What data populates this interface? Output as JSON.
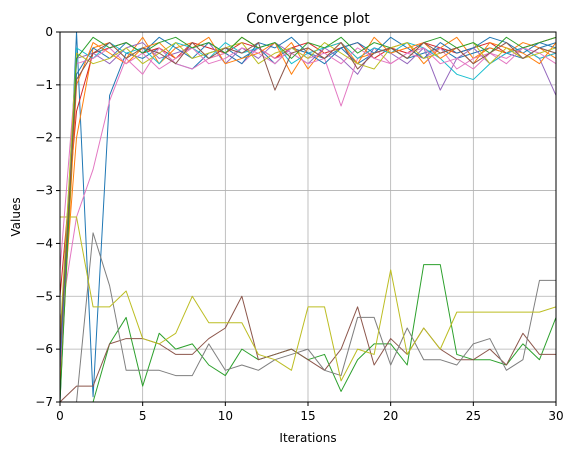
{
  "chart_data": {
    "type": "line",
    "title": "Convergence plot",
    "xlabel": "Iterations",
    "ylabel": "Values",
    "xlim": [
      0,
      30
    ],
    "ylim": [
      -7,
      0
    ],
    "xticks": [
      0,
      5,
      10,
      15,
      20,
      25,
      30
    ],
    "yticks": [
      0,
      -1,
      -2,
      -3,
      -4,
      -5,
      -6,
      -7
    ],
    "ytick_labels": [
      "0",
      "−1",
      "−2",
      "−3",
      "−4",
      "−5",
      "−6",
      "−7"
    ],
    "grid": true,
    "colors": [
      "#1f77b4",
      "#ff7f0e",
      "#2ca02c",
      "#d62728",
      "#9467bd",
      "#8c564b",
      "#e377c2",
      "#7f7f7f",
      "#bcbd22",
      "#17becf"
    ],
    "series": [
      {
        "color": "#1f77b4",
        "values": [
          -7,
          0,
          -6.9,
          -1.2,
          -0.4,
          -0.5,
          -0.3,
          -0.6,
          -0.7,
          -0.4,
          -0.3,
          -0.5,
          -0.3,
          -0.6,
          -0.3,
          -0.4,
          -0.5,
          -0.3,
          -0.6,
          -0.4,
          -0.3,
          -0.5,
          -0.4,
          -0.3,
          -0.5,
          -0.4,
          -0.3,
          -0.4,
          -0.5,
          -0.3,
          -0.2
        ]
      },
      {
        "color": "#ff7f0e",
        "values": [
          -6,
          -2,
          -0.3,
          -0.2,
          -0.5,
          -0.1,
          -0.6,
          -0.3,
          -0.2,
          -0.5,
          -0.4,
          -0.1,
          -0.3,
          -0.5,
          -0.2,
          -0.7,
          -0.3,
          -0.2,
          -0.5,
          -0.4,
          -0.3,
          -0.2,
          -0.6,
          -0.3,
          -0.1,
          -0.5,
          -0.3,
          -0.4,
          -0.2,
          -0.3,
          -0.5
        ]
      },
      {
        "color": "#2ca02c",
        "values": [
          -7,
          -7,
          -7,
          -5.9,
          -5.4,
          -6.7,
          -5.7,
          -6.0,
          -5.9,
          -6.3,
          -6.5,
          -6.0,
          -6.2,
          -6.1,
          -6.0,
          -6.2,
          -6.1,
          -6.8,
          -6.2,
          -5.9,
          -5.9,
          -6.3,
          -4.4,
          -4.4,
          -6.1,
          -6.2,
          -6.2,
          -6.3,
          -5.9,
          -6.2,
          -5.4
        ]
      },
      {
        "color": "#d62728",
        "values": [
          -5,
          -1.5,
          -0.4,
          -0.3,
          -0.2,
          -0.4,
          -0.3,
          -0.5,
          -0.2,
          -0.3,
          -0.4,
          -0.2,
          -0.3,
          -0.5,
          -0.3,
          -0.2,
          -0.4,
          -0.3,
          -0.2,
          -0.5,
          -0.3,
          -0.4,
          -0.2,
          -0.3,
          -0.4,
          -0.3,
          -0.2,
          -0.4,
          -0.3,
          -0.2,
          -0.1
        ]
      },
      {
        "color": "#9467bd",
        "values": [
          -6.5,
          -0.5,
          -0.4,
          -0.6,
          -0.3,
          -0.2,
          -0.5,
          -0.4,
          -0.3,
          -0.2,
          -0.6,
          -0.3,
          -0.5,
          -0.2,
          -0.4,
          -0.6,
          -0.3,
          -0.5,
          -0.8,
          -0.3,
          -0.4,
          -0.6,
          -0.3,
          -1.1,
          -0.5,
          -0.3,
          -0.6,
          -0.4,
          -0.3,
          -0.5,
          -1.2
        ]
      },
      {
        "color": "#8c564b",
        "values": [
          -7,
          -6.7,
          -6.7,
          -5.9,
          -5.8,
          -5.8,
          -5.9,
          -6.1,
          -6.1,
          -5.8,
          -5.6,
          -5.0,
          -6.2,
          -6.1,
          -6.0,
          -6.2,
          -6.4,
          -6.0,
          -5.2,
          -6.3,
          -5.8,
          -6.1,
          -5.6,
          -6.0,
          -6.2,
          -6.2,
          -6.0,
          -6.3,
          -5.7,
          -6.1,
          -6.1
        ]
      },
      {
        "color": "#e377c2",
        "values": [
          -5.5,
          -3.5,
          -2.6,
          -1.3,
          -0.5,
          -0.8,
          -0.3,
          -0.6,
          -0.7,
          -0.5,
          -0.4,
          -0.6,
          -0.3,
          -0.5,
          -0.4,
          -0.6,
          -0.5,
          -1.4,
          -0.5,
          -0.3,
          -0.6,
          -0.4,
          -0.5,
          -0.3,
          -0.7,
          -0.5,
          -0.4,
          -0.6,
          -0.3,
          -0.5,
          -0.4
        ]
      },
      {
        "color": "#7f7f7f",
        "values": [
          -7,
          -7,
          -3.8,
          -4.8,
          -6.4,
          -6.4,
          -6.4,
          -6.5,
          -6.5,
          -5.9,
          -6.4,
          -6.3,
          -6.4,
          -6.2,
          -6.1,
          -6.0,
          -6.4,
          -6.5,
          -5.4,
          -5.4,
          -6.3,
          -5.6,
          -6.2,
          -6.2,
          -6.3,
          -5.9,
          -5.8,
          -6.4,
          -6.2,
          -4.7,
          -4.7
        ]
      },
      {
        "color": "#bcbd22",
        "values": [
          -3.5,
          -3.5,
          -5.2,
          -5.2,
          -4.9,
          -5.8,
          -5.9,
          -5.7,
          -5.0,
          -5.5,
          -5.5,
          -5.5,
          -6.1,
          -6.2,
          -6.4,
          -5.2,
          -5.2,
          -6.6,
          -6.0,
          -6.1,
          -4.5,
          -6.1,
          -5.6,
          -6.0,
          -5.3,
          -5.3,
          -5.3,
          -5.3,
          -5.3,
          -5.3,
          -5.2
        ]
      },
      {
        "color": "#17becf",
        "values": [
          -6,
          -0.3,
          -0.5,
          -0.2,
          -0.4,
          -0.3,
          -0.6,
          -0.2,
          -0.3,
          -0.5,
          -0.2,
          -0.4,
          -0.3,
          -0.2,
          -0.6,
          -0.4,
          -0.3,
          -0.2,
          -0.5,
          -0.3,
          -0.4,
          -0.2,
          -0.3,
          -0.5,
          -0.8,
          -0.9,
          -0.6,
          -0.4,
          -0.3,
          -0.5,
          -0.4
        ]
      },
      {
        "color": "#1f77b4",
        "values": [
          -6.2,
          -0.8,
          -0.3,
          -0.5,
          -0.2,
          -0.4,
          -0.1,
          -0.3,
          -0.5,
          -0.2,
          -0.4,
          -0.6,
          -0.2,
          -0.3,
          -0.1,
          -0.4,
          -0.6,
          -0.3,
          -0.2,
          -0.4,
          -0.1,
          -0.3,
          -0.5,
          -0.2,
          -0.4,
          -0.3,
          -0.1,
          -0.2,
          -0.4,
          -0.2,
          -0.3
        ]
      },
      {
        "color": "#ff7f0e",
        "values": [
          -6.8,
          -1.0,
          -0.2,
          -0.4,
          -0.6,
          -0.3,
          -0.2,
          -0.5,
          -0.3,
          -0.1,
          -0.6,
          -0.5,
          -0.4,
          -0.2,
          -0.8,
          -0.3,
          -0.5,
          -0.2,
          -0.6,
          -0.1,
          -0.4,
          -0.3,
          -0.2,
          -0.5,
          -0.3,
          -0.6,
          -0.2,
          -0.3,
          -0.4,
          -0.6,
          -0.2
        ]
      },
      {
        "color": "#e377c2",
        "values": [
          -4.5,
          -0.6,
          -0.5,
          -0.3,
          -0.6,
          -0.4,
          -0.7,
          -0.5,
          -0.3,
          -0.6,
          -0.5,
          -0.3,
          -0.4,
          -0.6,
          -0.3,
          -0.5,
          -0.4,
          -0.6,
          -0.3,
          -0.5,
          -0.6,
          -0.4,
          -0.3,
          -0.6,
          -0.5,
          -0.7,
          -0.4,
          -0.5,
          -0.3,
          -0.4,
          -0.6
        ]
      },
      {
        "color": "#bcbd22",
        "values": [
          -5.8,
          -0.4,
          -0.6,
          -0.5,
          -0.3,
          -0.6,
          -0.4,
          -0.2,
          -0.5,
          -0.4,
          -0.3,
          -0.2,
          -0.6,
          -0.4,
          -0.3,
          -0.5,
          -0.2,
          -0.4,
          -0.6,
          -0.7,
          -0.3,
          -0.2,
          -0.5,
          -0.4,
          -0.3,
          -0.2,
          -0.6,
          -0.3,
          -0.5,
          -0.4,
          -0.3
        ]
      },
      {
        "color": "#2ca02c",
        "values": [
          -7,
          -0.5,
          -0.1,
          -0.3,
          -0.2,
          -0.4,
          -0.2,
          -0.1,
          -0.3,
          -0.2,
          -0.4,
          -0.1,
          -0.3,
          -0.2,
          -0.5,
          -0.2,
          -0.3,
          -0.1,
          -0.4,
          -0.2,
          -0.3,
          -0.5,
          -0.2,
          -0.1,
          -0.3,
          -0.2,
          -0.4,
          -0.1,
          -0.3,
          -0.2,
          -0.1
        ]
      },
      {
        "color": "#8c564b",
        "values": [
          -6.0,
          -0.9,
          -0.4,
          -0.2,
          -0.5,
          -0.3,
          -0.4,
          -0.6,
          -0.2,
          -0.5,
          -0.3,
          -0.4,
          -0.2,
          -1.1,
          -0.4,
          -0.3,
          -0.5,
          -0.2,
          -0.7,
          -0.4,
          -0.3,
          -0.5,
          -0.2,
          -0.4,
          -0.3,
          -0.6,
          -0.4,
          -0.2,
          -0.5,
          -0.3,
          -0.4
        ]
      }
    ]
  }
}
